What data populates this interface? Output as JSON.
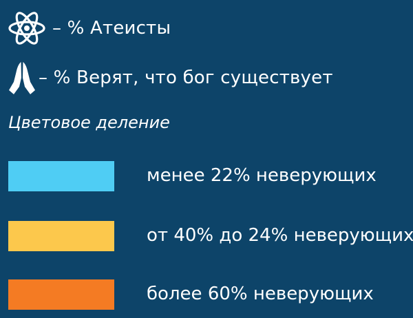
{
  "legend": {
    "atheists": {
      "icon": "atom-icon",
      "text": "– % Атеисты"
    },
    "believers": {
      "icon": "praying-hands-icon",
      "text": "– % Верят, что бог существует"
    }
  },
  "color_section": {
    "title": "Цветовое деление",
    "items": [
      {
        "color": "#4fcdf4",
        "label": "менее 22% неверующих"
      },
      {
        "color": "#fcc84c",
        "label": "от 40% до 24% неверующих"
      },
      {
        "color": "#f47b23",
        "label": "более 60% неверующих"
      }
    ]
  }
}
